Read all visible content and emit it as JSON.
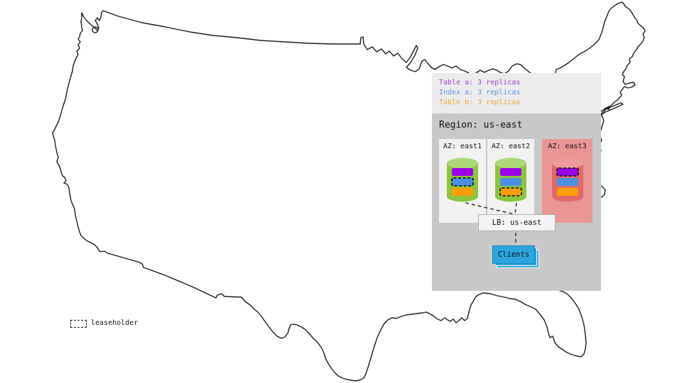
{
  "legend": {
    "items": [
      {
        "text": "Table a: 3 replicas",
        "color": "#A13CD6"
      },
      {
        "text": "Index a: 3 replicas",
        "color": "#5B8FDD"
      },
      {
        "text": "Table b: 3 replicas",
        "color": "#F2A232"
      }
    ]
  },
  "region": {
    "title": "Region: us-east",
    "azs": [
      {
        "label": "AZ: east1",
        "status": "up",
        "replicas": [
          {
            "name": "table-a",
            "color": "#9B00E8",
            "leaseholder": false
          },
          {
            "name": "index-a",
            "color": "#4A90E2",
            "leaseholder": true
          },
          {
            "name": "table-b",
            "color": "#FF9E00",
            "leaseholder": false
          }
        ]
      },
      {
        "label": "AZ: east2",
        "status": "up",
        "replicas": [
          {
            "name": "table-a",
            "color": "#9B00E8",
            "leaseholder": false
          },
          {
            "name": "index-a",
            "color": "#4A90E2",
            "leaseholder": false
          },
          {
            "name": "table-b",
            "color": "#FF9E00",
            "leaseholder": true
          }
        ]
      },
      {
        "label": "AZ: east3",
        "status": "down",
        "replicas": [
          {
            "name": "table-a",
            "color": "#9B00E8",
            "leaseholder": true
          },
          {
            "name": "index-a",
            "color": "#4A90E2",
            "leaseholder": false
          },
          {
            "name": "table-b",
            "color": "#FF9E00",
            "leaseholder": false
          }
        ]
      }
    ],
    "lb": {
      "label": "LB: us-east"
    },
    "clients": {
      "label": "Clients"
    }
  },
  "key": {
    "leaseholder_label": "leaseholder"
  },
  "colors": {
    "legend_panel_bg": "#ECECEC",
    "region_panel_bg": "#C8C8C8",
    "az_up_bg": "#F2F2F2",
    "az_down_bg": "#E99695",
    "cyl_up_body": "#8BC53F",
    "cyl_up_top": "#ADD878",
    "cyl_down_body": "#E06A6A",
    "cyl_down_top": "#EC9C9C",
    "lb_bg": "#F4F4F4",
    "clients_bg": "#2AA5DF",
    "connector": "#3c3c3c",
    "map_stroke": "#1b1b1b"
  }
}
